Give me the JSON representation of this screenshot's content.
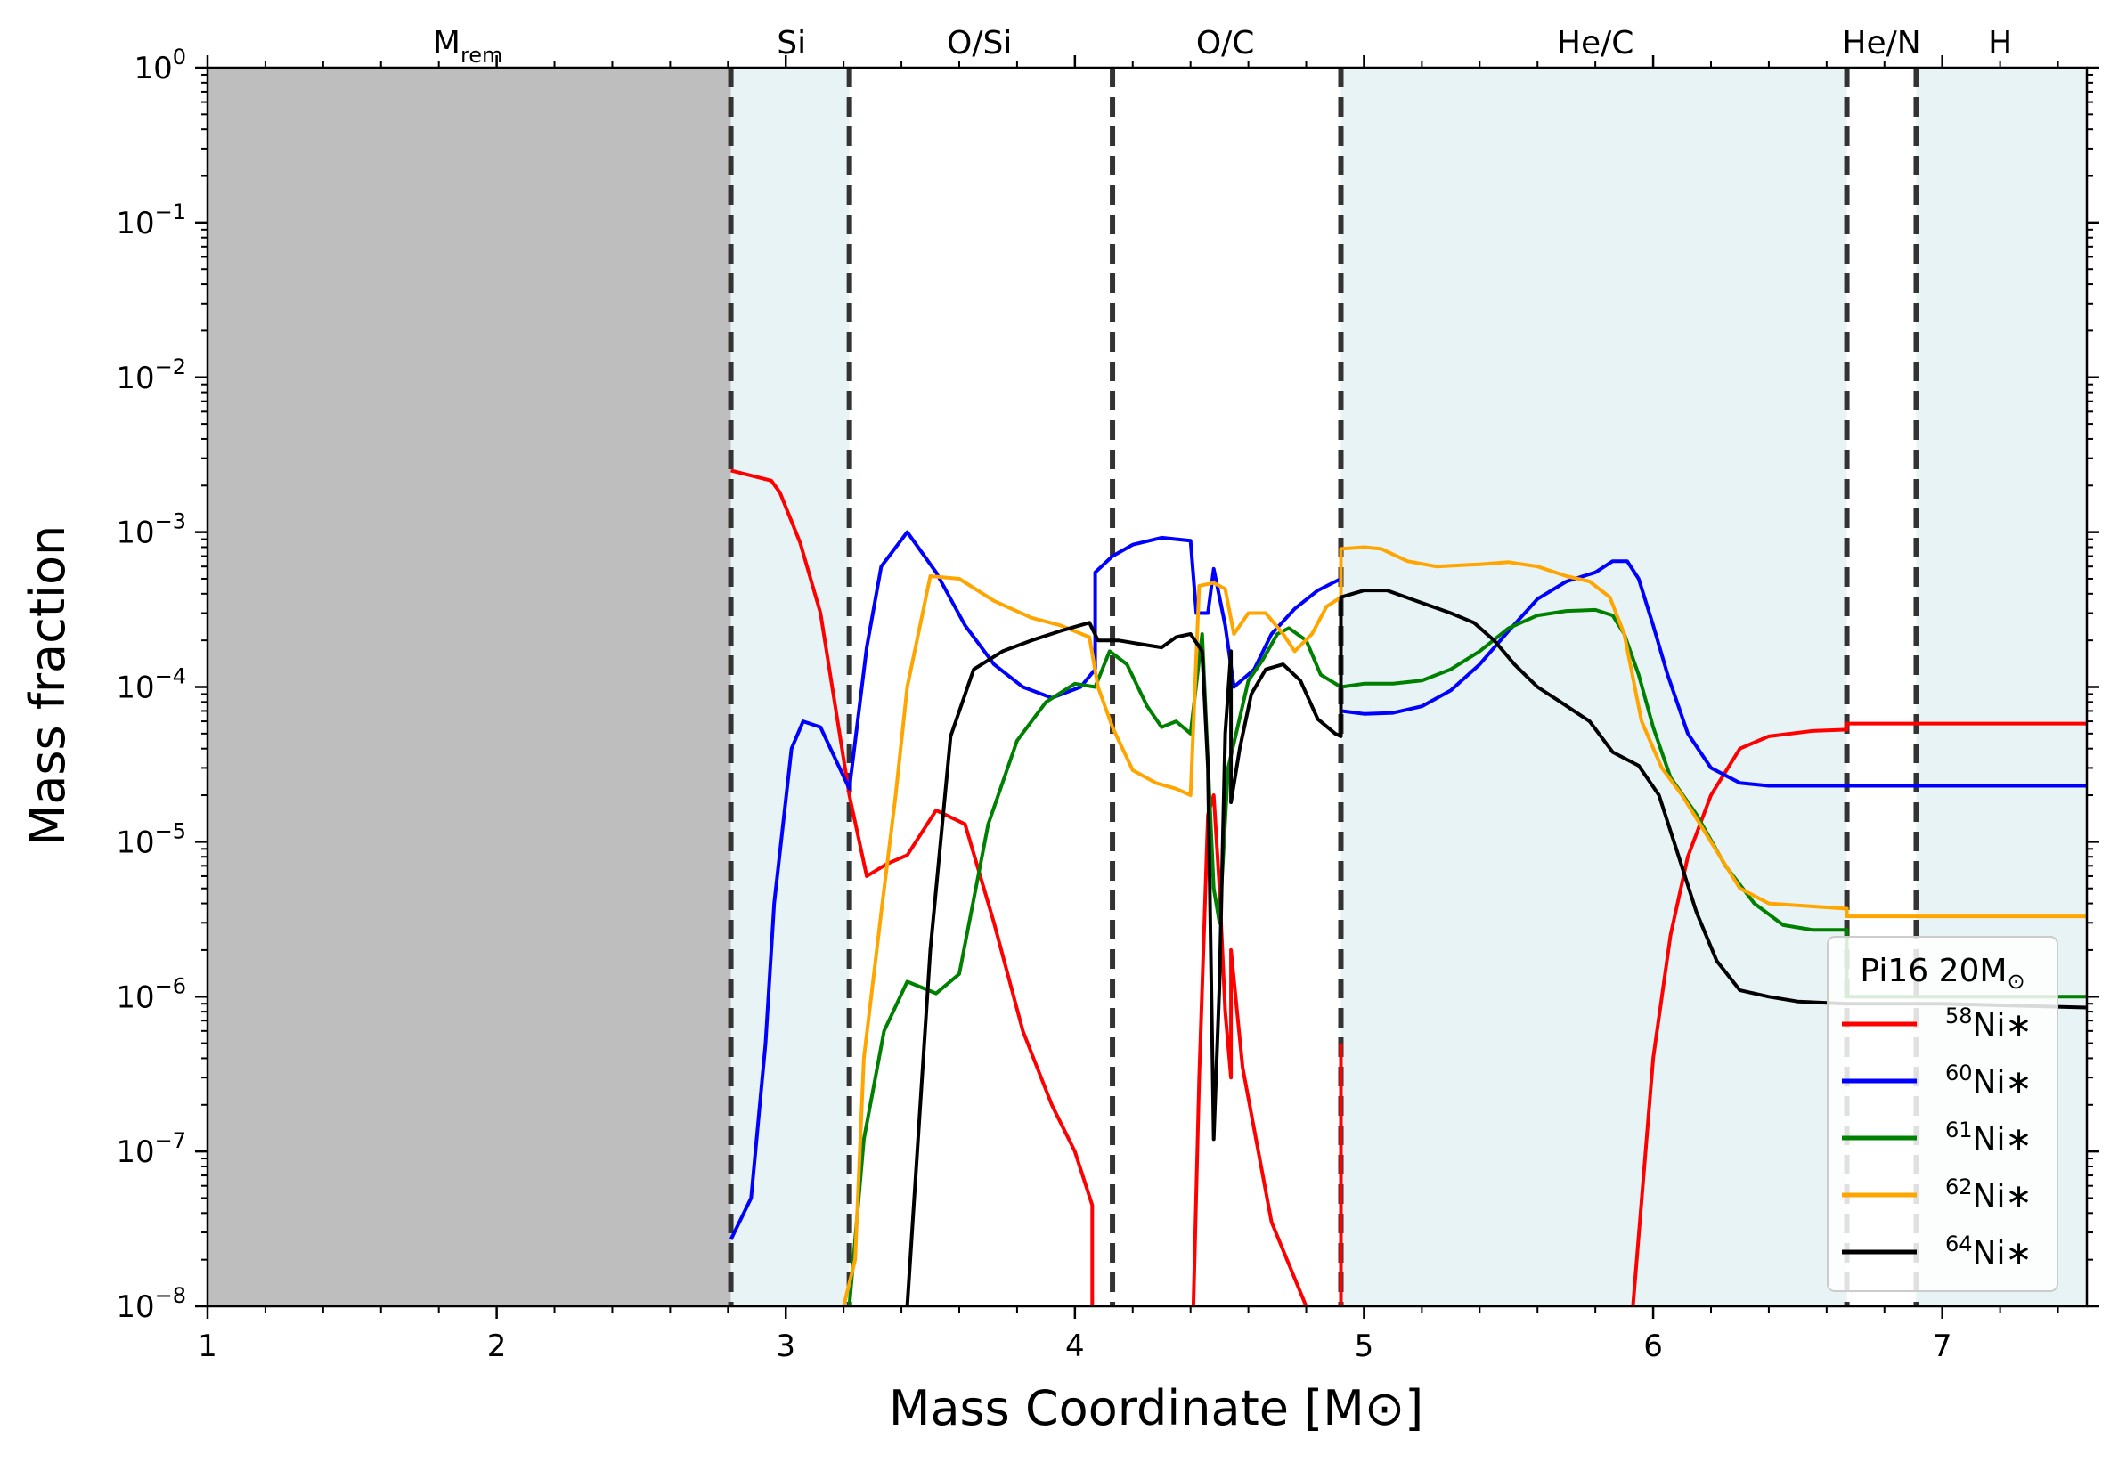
{
  "chart_data": {
    "type": "line",
    "title": "",
    "xlabel": "Mass Coordinate [M⊙]",
    "ylabel": "Mass fraction",
    "xlim": [
      1,
      7.5
    ],
    "ylim": [
      1e-08,
      1
    ],
    "yscale": "log",
    "x_ticks": [
      1,
      2,
      3,
      4,
      5,
      6,
      7
    ],
    "y_ticks": [
      {
        "value": 1,
        "base": "10",
        "exp": "0"
      },
      {
        "value": 0.1,
        "base": "10",
        "exp": "−1"
      },
      {
        "value": 0.01,
        "base": "10",
        "exp": "−2"
      },
      {
        "value": 0.001,
        "base": "10",
        "exp": "−3"
      },
      {
        "value": 0.0001,
        "base": "10",
        "exp": "−4"
      },
      {
        "value": 1e-05,
        "base": "10",
        "exp": "−5"
      },
      {
        "value": 1e-06,
        "base": "10",
        "exp": "−6"
      },
      {
        "value": 1e-07,
        "base": "10",
        "exp": "−7"
      },
      {
        "value": 1e-08,
        "base": "10",
        "exp": "−8"
      }
    ],
    "remnant": {
      "x0": 1,
      "x1": 2.81,
      "color": "#bebebe"
    },
    "shaded_regions": [
      {
        "x0": 2.81,
        "x1": 3.22,
        "color": "#e7f3f5"
      },
      {
        "x0": 4.92,
        "x1": 6.67,
        "color": "#e7f3f5"
      },
      {
        "x0": 6.91,
        "x1": 7.5,
        "color": "#e7f3f5"
      }
    ],
    "boundaries": [
      2.81,
      3.22,
      4.13,
      4.92,
      6.67,
      6.91
    ],
    "zones": [
      {
        "name": "M",
        "sub": "rem",
        "x": 1.9
      },
      {
        "name": "Si",
        "x": 3.02
      },
      {
        "name": "O/Si",
        "x": 3.67
      },
      {
        "name": "O/C",
        "x": 4.52
      },
      {
        "name": "He/C",
        "x": 5.8
      },
      {
        "name": "He/N",
        "x": 6.79
      },
      {
        "name": "H",
        "x": 7.2
      }
    ],
    "legend": {
      "title": "Pi16 20M",
      "title_sub": "⊙",
      "position": "lower-right"
    },
    "series": [
      {
        "name": "58Ni*",
        "mass": "58",
        "label": "Ni∗",
        "color": "#ff0000",
        "points": [
          [
            2.81,
            0.0025
          ],
          [
            2.95,
            0.00215
          ],
          [
            2.98,
            0.0018
          ],
          [
            3.05,
            0.00085
          ],
          [
            3.12,
            0.0003
          ],
          [
            3.22,
            2e-05
          ],
          [
            3.28,
            6e-06
          ],
          [
            3.35,
            7.2e-06
          ],
          [
            3.42,
            8.2e-06
          ],
          [
            3.52,
            1.6e-05
          ],
          [
            3.62,
            1.3e-05
          ],
          [
            3.72,
            3e-06
          ],
          [
            3.82,
            6e-07
          ],
          [
            3.92,
            2e-07
          ],
          [
            4.0,
            1e-07
          ],
          [
            4.06,
            4.5e-08
          ],
          [
            4.06,
            1e-08
          ]
        ]
      },
      {
        "name": "58Ni* inner",
        "mass": "",
        "label": "",
        "color": "#ff0000",
        "points": [
          [
            4.41,
            1e-08
          ],
          [
            4.43,
            3e-07
          ],
          [
            4.46,
            1.5e-05
          ],
          [
            4.48,
            2e-05
          ],
          [
            4.5,
            5e-06
          ],
          [
            4.52,
            8e-07
          ],
          [
            4.54,
            3e-07
          ],
          [
            4.54,
            2e-06
          ],
          [
            4.58,
            3.5e-07
          ],
          [
            4.68,
            3.5e-08
          ],
          [
            4.8,
            1e-08
          ]
        ]
      },
      {
        "name": "58Ni* edge",
        "mass": "",
        "label": "",
        "color": "#ff0000",
        "points": [
          [
            4.92,
            1e-08
          ],
          [
            4.92,
            5e-07
          ]
        ]
      },
      {
        "name": "58Ni* outer",
        "mass": "",
        "label": "",
        "color": "#ff0000",
        "points": [
          [
            5.93,
            1e-08
          ],
          [
            6.0,
            4e-07
          ],
          [
            6.06,
            2.5e-06
          ],
          [
            6.12,
            8e-06
          ],
          [
            6.2,
            2e-05
          ],
          [
            6.3,
            4e-05
          ],
          [
            6.4,
            4.8e-05
          ],
          [
            6.55,
            5.2e-05
          ],
          [
            6.67,
            5.3e-05
          ],
          [
            6.67,
            5.8e-05
          ],
          [
            7.5,
            5.8e-05
          ]
        ]
      },
      {
        "name": "60Ni*",
        "mass": "60",
        "label": "Ni∗",
        "color": "#0000ff",
        "points": [
          [
            2.81,
            2.7e-08
          ],
          [
            2.88,
            5e-08
          ],
          [
            2.93,
            5e-07
          ],
          [
            2.96,
            4e-06
          ],
          [
            3.02,
            4e-05
          ],
          [
            3.06,
            6e-05
          ],
          [
            3.12,
            5.5e-05
          ],
          [
            3.22,
            2.2e-05
          ],
          [
            3.28,
            0.00018
          ],
          [
            3.33,
            0.0006
          ],
          [
            3.42,
            0.001
          ],
          [
            3.52,
            0.00055
          ],
          [
            3.62,
            0.00025
          ],
          [
            3.72,
            0.00014
          ],
          [
            3.82,
            0.0001
          ],
          [
            3.92,
            8.5e-05
          ],
          [
            4.02,
            0.0001
          ],
          [
            4.07,
            0.00013
          ],
          [
            4.07,
            0.00055
          ],
          [
            4.13,
            0.0007
          ],
          [
            4.2,
            0.00083
          ],
          [
            4.3,
            0.00092
          ],
          [
            4.4,
            0.00088
          ],
          [
            4.42,
            0.0003
          ],
          [
            4.46,
            0.0003
          ],
          [
            4.48,
            0.00058
          ],
          [
            4.52,
            0.00025
          ],
          [
            4.55,
            0.0001
          ],
          [
            4.62,
            0.00013
          ],
          [
            4.68,
            0.00022
          ],
          [
            4.76,
            0.00032
          ],
          [
            4.84,
            0.00042
          ],
          [
            4.92,
            0.0005
          ],
          [
            4.92,
            7e-05
          ],
          [
            5.0,
            6.7e-05
          ],
          [
            5.1,
            6.8e-05
          ],
          [
            5.2,
            7.5e-05
          ],
          [
            5.3,
            9.5e-05
          ],
          [
            5.4,
            0.00014
          ],
          [
            5.5,
            0.00023
          ],
          [
            5.6,
            0.00037
          ],
          [
            5.7,
            0.00048
          ],
          [
            5.8,
            0.00055
          ],
          [
            5.86,
            0.00065
          ],
          [
            5.91,
            0.00065
          ],
          [
            5.95,
            0.0005
          ],
          [
            6.0,
            0.00025
          ],
          [
            6.05,
            0.00012
          ],
          [
            6.12,
            5e-05
          ],
          [
            6.2,
            3e-05
          ],
          [
            6.3,
            2.4e-05
          ],
          [
            6.4,
            2.3e-05
          ],
          [
            6.67,
            2.3e-05
          ],
          [
            7.5,
            2.3e-05
          ]
        ]
      },
      {
        "name": "61Ni*",
        "mass": "61",
        "label": "Ni∗",
        "color": "#008000",
        "points": [
          [
            3.22,
            1e-08
          ],
          [
            3.27,
            1.2e-07
          ],
          [
            3.34,
            6e-07
          ],
          [
            3.42,
            1.25e-06
          ],
          [
            3.52,
            1.05e-06
          ],
          [
            3.6,
            1.4e-06
          ],
          [
            3.7,
            1.3e-05
          ],
          [
            3.8,
            4.5e-05
          ],
          [
            3.9,
            8e-05
          ],
          [
            4.0,
            0.000105
          ],
          [
            4.07,
            0.0001
          ],
          [
            4.12,
            0.00017
          ],
          [
            4.18,
            0.00014
          ],
          [
            4.25,
            7.5e-05
          ],
          [
            4.3,
            5.5e-05
          ],
          [
            4.35,
            6e-05
          ],
          [
            4.4,
            5e-05
          ],
          [
            4.44,
            0.00022
          ],
          [
            4.48,
            5e-06
          ],
          [
            4.5,
            3e-06
          ],
          [
            4.53,
            3e-05
          ],
          [
            4.6,
            0.00011
          ],
          [
            4.65,
            0.00015
          ],
          [
            4.7,
            0.00022
          ],
          [
            4.74,
            0.00024
          ],
          [
            4.8,
            0.0002
          ],
          [
            4.85,
            0.00012
          ],
          [
            4.92,
            0.0001
          ],
          [
            5.0,
            0.000105
          ],
          [
            5.1,
            0.000105
          ],
          [
            5.2,
            0.00011
          ],
          [
            5.3,
            0.00013
          ],
          [
            5.4,
            0.00017
          ],
          [
            5.5,
            0.00024
          ],
          [
            5.6,
            0.00029
          ],
          [
            5.7,
            0.00031
          ],
          [
            5.8,
            0.000315
          ],
          [
            5.86,
            0.00029
          ],
          [
            5.9,
            0.00022
          ],
          [
            5.95,
            0.00012
          ],
          [
            6.0,
            5.5e-05
          ],
          [
            6.06,
            2.6e-05
          ],
          [
            6.15,
            1.5e-05
          ],
          [
            6.25,
            7e-06
          ],
          [
            6.35,
            4e-06
          ],
          [
            6.45,
            2.9e-06
          ],
          [
            6.55,
            2.7e-06
          ],
          [
            6.67,
            2.7e-06
          ],
          [
            6.67,
            1e-06
          ],
          [
            7.5,
            1e-06
          ]
        ]
      },
      {
        "name": "62Ni*",
        "mass": "62",
        "label": "Ni∗",
        "color": "#ffa500",
        "points": [
          [
            3.2,
            1e-08
          ],
          [
            3.24,
            2e-08
          ],
          [
            3.27,
            4e-07
          ],
          [
            3.33,
            3.5e-06
          ],
          [
            3.38,
            2e-05
          ],
          [
            3.42,
            0.0001
          ],
          [
            3.5,
            0.00052
          ],
          [
            3.6,
            0.0005
          ],
          [
            3.72,
            0.00036
          ],
          [
            3.85,
            0.00028
          ],
          [
            3.95,
            0.00025
          ],
          [
            4.05,
            0.00021
          ],
          [
            4.08,
            0.0001
          ],
          [
            4.13,
            5.5e-05
          ],
          [
            4.2,
            2.9e-05
          ],
          [
            4.28,
            2.4e-05
          ],
          [
            4.35,
            2.2e-05
          ],
          [
            4.4,
            2e-05
          ],
          [
            4.43,
            0.00045
          ],
          [
            4.48,
            0.00047
          ],
          [
            4.52,
            0.00043
          ],
          [
            4.55,
            0.00022
          ],
          [
            4.6,
            0.0003
          ],
          [
            4.66,
            0.0003
          ],
          [
            4.72,
            0.00022
          ],
          [
            4.76,
            0.00017
          ],
          [
            4.82,
            0.00022
          ],
          [
            4.87,
            0.00033
          ],
          [
            4.92,
            0.00038
          ],
          [
            4.92,
            0.00078
          ],
          [
            5.0,
            0.0008
          ],
          [
            5.06,
            0.00078
          ],
          [
            5.15,
            0.00065
          ],
          [
            5.25,
            0.0006
          ],
          [
            5.4,
            0.00062
          ],
          [
            5.5,
            0.00064
          ],
          [
            5.6,
            0.0006
          ],
          [
            5.7,
            0.00052
          ],
          [
            5.78,
            0.00048
          ],
          [
            5.85,
            0.00038
          ],
          [
            5.9,
            0.00022
          ],
          [
            5.96,
            6e-05
          ],
          [
            6.03,
            3e-05
          ],
          [
            6.1,
            2e-05
          ],
          [
            6.2,
            1e-05
          ],
          [
            6.3,
            5e-06
          ],
          [
            6.4,
            4e-06
          ],
          [
            6.67,
            3.7e-06
          ],
          [
            6.67,
            3.3e-06
          ],
          [
            7.5,
            3.3e-06
          ]
        ]
      },
      {
        "name": "64Ni*",
        "mass": "64",
        "label": "Ni∗",
        "color": "#000000",
        "points": [
          [
            3.42,
            1e-08
          ],
          [
            3.5,
            2e-06
          ],
          [
            3.57,
            4.8e-05
          ],
          [
            3.65,
            0.00013
          ],
          [
            3.75,
            0.00017
          ],
          [
            3.85,
            0.0002
          ],
          [
            3.95,
            0.00023
          ],
          [
            4.05,
            0.00026
          ],
          [
            4.08,
            0.0002
          ],
          [
            4.15,
            0.0002
          ],
          [
            4.22,
            0.00019
          ],
          [
            4.3,
            0.00018
          ],
          [
            4.35,
            0.00021
          ],
          [
            4.4,
            0.00022
          ],
          [
            4.44,
            0.00017
          ],
          [
            4.46,
            3e-05
          ],
          [
            4.48,
            1.2e-07
          ],
          [
            4.5,
            1.2e-06
          ],
          [
            4.52,
            5e-05
          ],
          [
            4.54,
            0.00017
          ],
          [
            4.54,
            1.8e-05
          ],
          [
            4.57,
            4e-05
          ],
          [
            4.61,
            9e-05
          ],
          [
            4.66,
            0.00013
          ],
          [
            4.72,
            0.00014
          ],
          [
            4.78,
            0.00011
          ],
          [
            4.84,
            6.2e-05
          ],
          [
            4.9,
            5e-05
          ],
          [
            4.92,
            4.8e-05
          ],
          [
            4.92,
            0.00038
          ],
          [
            5.0,
            0.00042
          ],
          [
            5.08,
            0.00042
          ],
          [
            5.18,
            0.00036
          ],
          [
            5.3,
            0.0003
          ],
          [
            5.38,
            0.00026
          ],
          [
            5.45,
            0.0002
          ],
          [
            5.52,
            0.00014
          ],
          [
            5.6,
            0.0001
          ],
          [
            5.68,
            8e-05
          ],
          [
            5.78,
            6e-05
          ],
          [
            5.86,
            3.8e-05
          ],
          [
            5.95,
            3.1e-05
          ],
          [
            6.02,
            2e-05
          ],
          [
            6.08,
            9e-06
          ],
          [
            6.15,
            3.5e-06
          ],
          [
            6.22,
            1.7e-06
          ],
          [
            6.3,
            1.1e-06
          ],
          [
            6.4,
            1e-06
          ],
          [
            6.5,
            9.3e-07
          ],
          [
            6.67,
            9e-07
          ],
          [
            7.0,
            9e-07
          ],
          [
            7.5,
            8.5e-07
          ]
        ]
      }
    ]
  }
}
